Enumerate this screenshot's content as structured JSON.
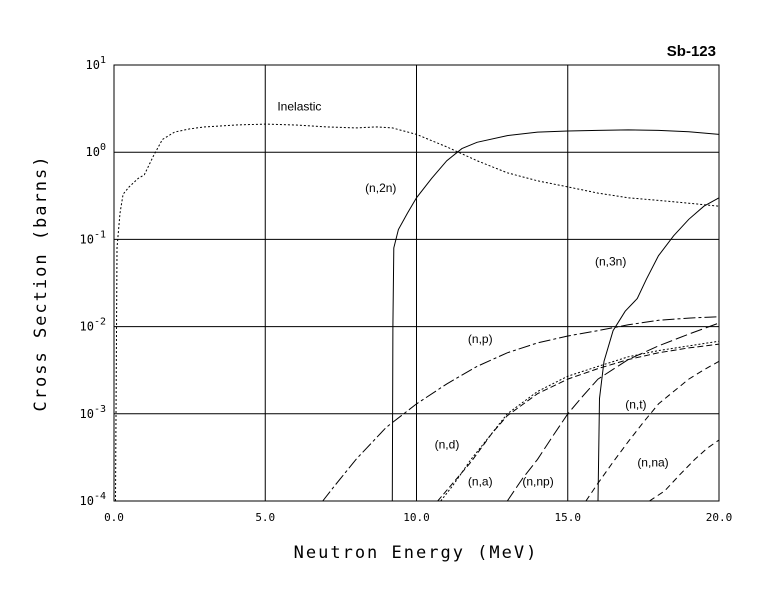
{
  "chart_data": {
    "type": "line",
    "title": "Sb-123",
    "xlabel": "Neutron Energy (MeV)",
    "ylabel": "Cross Section (barns)",
    "xlim": [
      0,
      20
    ],
    "ylim": [
      0.0001,
      10
    ],
    "yscale": "log",
    "grid": true,
    "x_ticks": [
      {
        "value": 0,
        "label": "0.0"
      },
      {
        "value": 5,
        "label": "5.0"
      },
      {
        "value": 10,
        "label": "10.0"
      },
      {
        "value": 15,
        "label": "15.0"
      },
      {
        "value": 20,
        "label": "20.0"
      }
    ],
    "y_ticks": [
      {
        "value": 0.0001,
        "base": "10",
        "exp": "-4"
      },
      {
        "value": 0.001,
        "base": "10",
        "exp": "-3"
      },
      {
        "value": 0.01,
        "base": "10",
        "exp": "-2"
      },
      {
        "value": 0.1,
        "base": "10",
        "exp": "-1"
      },
      {
        "value": 1,
        "base": "10",
        "exp": "0"
      },
      {
        "value": 10,
        "base": "10",
        "exp": "1"
      }
    ],
    "series": [
      {
        "name": "Inelastic",
        "dash": "2,2",
        "points": [
          [
            0.05,
            0.0001
          ],
          [
            0.1,
            0.08
          ],
          [
            0.2,
            0.2
          ],
          [
            0.3,
            0.33
          ],
          [
            0.5,
            0.4
          ],
          [
            0.8,
            0.5
          ],
          [
            1.0,
            0.55
          ],
          [
            1.3,
            0.9
          ],
          [
            1.6,
            1.4
          ],
          [
            2.0,
            1.7
          ],
          [
            2.5,
            1.85
          ],
          [
            3.0,
            1.95
          ],
          [
            4.0,
            2.05
          ],
          [
            5.0,
            2.1
          ],
          [
            6.0,
            2.05
          ],
          [
            7.0,
            1.95
          ],
          [
            8.0,
            1.9
          ],
          [
            8.7,
            1.95
          ],
          [
            9.2,
            1.9
          ],
          [
            10.0,
            1.6
          ],
          [
            11.0,
            1.15
          ],
          [
            12.0,
            0.8
          ],
          [
            13.0,
            0.58
          ],
          [
            14.0,
            0.47
          ],
          [
            15.0,
            0.4
          ],
          [
            16.0,
            0.34
          ],
          [
            17.0,
            0.3
          ],
          [
            18.0,
            0.28
          ],
          [
            19.0,
            0.26
          ],
          [
            20.0,
            0.24
          ]
        ]
      },
      {
        "name": "(n,2n)",
        "dash": "",
        "points": [
          [
            9.2,
            0.0001
          ],
          [
            9.22,
            0.01
          ],
          [
            9.25,
            0.08
          ],
          [
            9.4,
            0.13
          ],
          [
            9.7,
            0.2
          ],
          [
            10.0,
            0.3
          ],
          [
            10.5,
            0.5
          ],
          [
            11.0,
            0.8
          ],
          [
            11.5,
            1.1
          ],
          [
            12.0,
            1.3
          ],
          [
            13.0,
            1.55
          ],
          [
            14.0,
            1.7
          ],
          [
            15.0,
            1.75
          ],
          [
            16.0,
            1.78
          ],
          [
            17.0,
            1.8
          ],
          [
            18.0,
            1.78
          ],
          [
            19.0,
            1.72
          ],
          [
            20.0,
            1.6
          ]
        ]
      },
      {
        "name": "(n,3n)",
        "dash": "",
        "points": [
          [
            16.0,
            0.0001
          ],
          [
            16.05,
            0.0015
          ],
          [
            16.2,
            0.004
          ],
          [
            16.5,
            0.009
          ],
          [
            16.9,
            0.015
          ],
          [
            17.3,
            0.021
          ],
          [
            17.6,
            0.035
          ],
          [
            18.0,
            0.065
          ],
          [
            18.5,
            0.11
          ],
          [
            19.0,
            0.17
          ],
          [
            19.5,
            0.24
          ],
          [
            20.0,
            0.3
          ]
        ]
      },
      {
        "name": "(n,p)",
        "dash": "12,3,3,3",
        "points": [
          [
            6.9,
            0.0001
          ],
          [
            7.3,
            0.00015
          ],
          [
            8.0,
            0.0003
          ],
          [
            9.0,
            0.0007
          ],
          [
            10.0,
            0.0013
          ],
          [
            11.0,
            0.0022
          ],
          [
            12.0,
            0.0035
          ],
          [
            13.0,
            0.005
          ],
          [
            14.0,
            0.0065
          ],
          [
            15.0,
            0.0078
          ],
          [
            16.0,
            0.009
          ],
          [
            17.0,
            0.0105
          ],
          [
            18.0,
            0.0118
          ],
          [
            19.0,
            0.0125
          ],
          [
            20.0,
            0.013
          ]
        ]
      },
      {
        "name": "(n,d)",
        "dash": "2,2",
        "points": [
          [
            10.8,
            0.0001
          ],
          [
            11.2,
            0.00015
          ],
          [
            11.8,
            0.0003
          ],
          [
            12.5,
            0.0006
          ],
          [
            13.0,
            0.001
          ],
          [
            14.0,
            0.0018
          ],
          [
            15.0,
            0.0027
          ],
          [
            16.0,
            0.0035
          ],
          [
            17.0,
            0.0045
          ],
          [
            18.0,
            0.0053
          ],
          [
            19.0,
            0.006
          ],
          [
            20.0,
            0.0068
          ]
        ]
      },
      {
        "name": "(n,a)",
        "dash": "6,3",
        "points": [
          [
            10.7,
            0.0001
          ],
          [
            11.2,
            0.00016
          ],
          [
            11.8,
            0.00028
          ],
          [
            12.5,
            0.0006
          ],
          [
            13.0,
            0.00095
          ],
          [
            14.0,
            0.0017
          ],
          [
            15.0,
            0.0025
          ],
          [
            16.0,
            0.0033
          ],
          [
            17.0,
            0.0042
          ],
          [
            18.0,
            0.005
          ],
          [
            19.0,
            0.0057
          ],
          [
            20.0,
            0.0063
          ]
        ]
      },
      {
        "name": "(n,np)",
        "dash": "12,4",
        "points": [
          [
            13.0,
            0.0001
          ],
          [
            13.5,
            0.00018
          ],
          [
            14.0,
            0.0003
          ],
          [
            14.5,
            0.00055
          ],
          [
            15.0,
            0.001
          ],
          [
            15.5,
            0.0016
          ],
          [
            16.0,
            0.0025
          ],
          [
            17.0,
            0.0042
          ],
          [
            18.0,
            0.006
          ],
          [
            19.0,
            0.0082
          ],
          [
            20.0,
            0.011
          ]
        ]
      },
      {
        "name": "(n,t)",
        "dash": "6,4",
        "points": [
          [
            15.6,
            0.0001
          ],
          [
            16.0,
            0.00016
          ],
          [
            16.5,
            0.00028
          ],
          [
            17.0,
            0.00048
          ],
          [
            17.5,
            0.0008
          ],
          [
            18.0,
            0.0013
          ],
          [
            18.5,
            0.0018
          ],
          [
            19.0,
            0.0025
          ],
          [
            19.5,
            0.0032
          ],
          [
            20.0,
            0.004
          ]
        ]
      },
      {
        "name": "(n,na)",
        "dash": "6,4",
        "points": [
          [
            17.7,
            0.0001
          ],
          [
            18.2,
            0.00013
          ],
          [
            18.7,
            0.0002
          ],
          [
            19.2,
            0.0003
          ],
          [
            19.6,
            0.0004
          ],
          [
            20.0,
            0.0005
          ]
        ]
      }
    ],
    "annotations": [
      {
        "text": "Inelastic",
        "series": "Inelastic",
        "x": 5.4,
        "y": 3.0
      },
      {
        "text": "(n,2n)",
        "series": "(n,2n)",
        "x": 8.3,
        "y": 0.35
      },
      {
        "text": "(n,3n)",
        "series": "(n,3n)",
        "x": 15.9,
        "y": 0.05
      },
      {
        "text": "(n,p)",
        "series": "(n,p)",
        "x": 11.7,
        "y": 0.0065
      },
      {
        "text": "(n,t)",
        "series": "(n,t)",
        "x": 16.9,
        "y": 0.00115
      },
      {
        "text": "(n,d)",
        "series": "(n,d)",
        "x": 10.6,
        "y": 0.0004
      },
      {
        "text": "(n,a)",
        "series": "(n,a)",
        "x": 11.7,
        "y": 0.00015
      },
      {
        "text": "(n,np)",
        "series": "(n,np)",
        "x": 13.5,
        "y": 0.00015
      },
      {
        "text": "(n,na)",
        "series": "(n,na)",
        "x": 17.3,
        "y": 0.00025
      }
    ]
  }
}
